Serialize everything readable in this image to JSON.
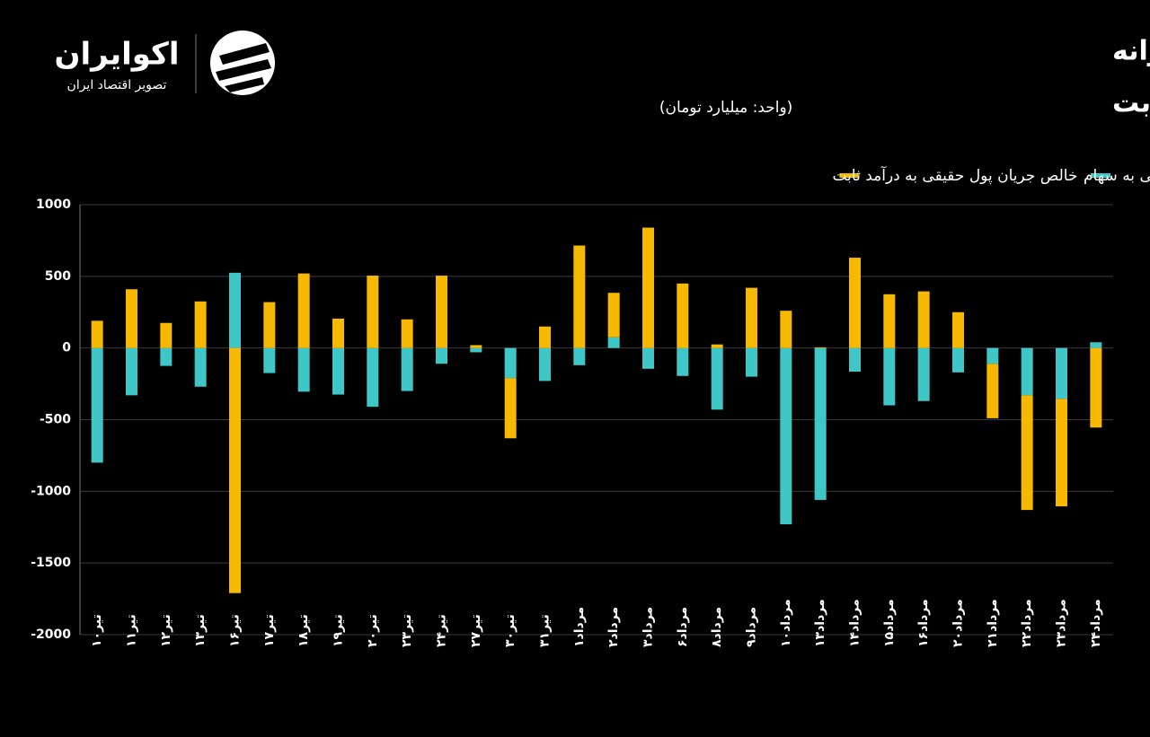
{
  "chart_data": {
    "type": "bar",
    "stacked": true,
    "logo": {
      "name": "اکوایران",
      "tagline": "تصویر اقتصاد ایران"
    },
    "title": [
      "روند جریان پول حقیقی روزانه",
      "در سهام و صندوق‌های درآمد ثابت"
    ],
    "subtitle": "(واحد: میلیارد تومان)",
    "categories": [
      "تیر۱۰",
      "تیر۱۱",
      "تیر۱۲",
      "تیر۱۳",
      "تیر۱۶",
      "تیر۱۷",
      "تیر۱۸",
      "تیر۱۹",
      "تیر۲۰",
      "تیر۲۳",
      "تیر۲۴",
      "تیر۲۷",
      "تیر۳۰",
      "تیر۳۱",
      "مرداد۱",
      "مرداد۲",
      "مرداد۳",
      "مرداد۶",
      "مرداد۸",
      "مرداد۹",
      "مرداد۱۰",
      "مرداد۱۳",
      "مرداد۱۴",
      "مرداد۱۵",
      "مرداد۱۶",
      "مرداد۲۰",
      "مرداد۲۱",
      "مرداد۲۲",
      "مرداد۲۳",
      "مرداد۲۴"
    ],
    "series": [
      {
        "name": "خالص جریان پول حقیقی به سهام",
        "color": "#3fc6c6",
        "values": [
          -800,
          -330,
          -125,
          -270,
          525,
          -175,
          -305,
          -325,
          -410,
          -300,
          -110,
          -30,
          -210,
          -230,
          -120,
          75,
          -145,
          -195,
          -430,
          -200,
          -1230,
          -1060,
          -165,
          -400,
          -370,
          -170,
          -110,
          -330,
          -355,
          40
        ]
      },
      {
        "name": "خالص جریان پول حقیقی به درآمد ثابت",
        "color": "#f7b800",
        "values": [
          190,
          410,
          175,
          325,
          -1710,
          320,
          520,
          205,
          505,
          200,
          505,
          20,
          -420,
          150,
          715,
          310,
          840,
          450,
          25,
          420,
          260,
          5,
          630,
          375,
          395,
          250,
          -380,
          -800,
          -750,
          -555
        ]
      }
    ],
    "ylim": [
      -2000,
      1000
    ],
    "yticks": [
      -2000,
      -1500,
      -1000,
      -500,
      0,
      500,
      1000
    ],
    "grid": true
  }
}
